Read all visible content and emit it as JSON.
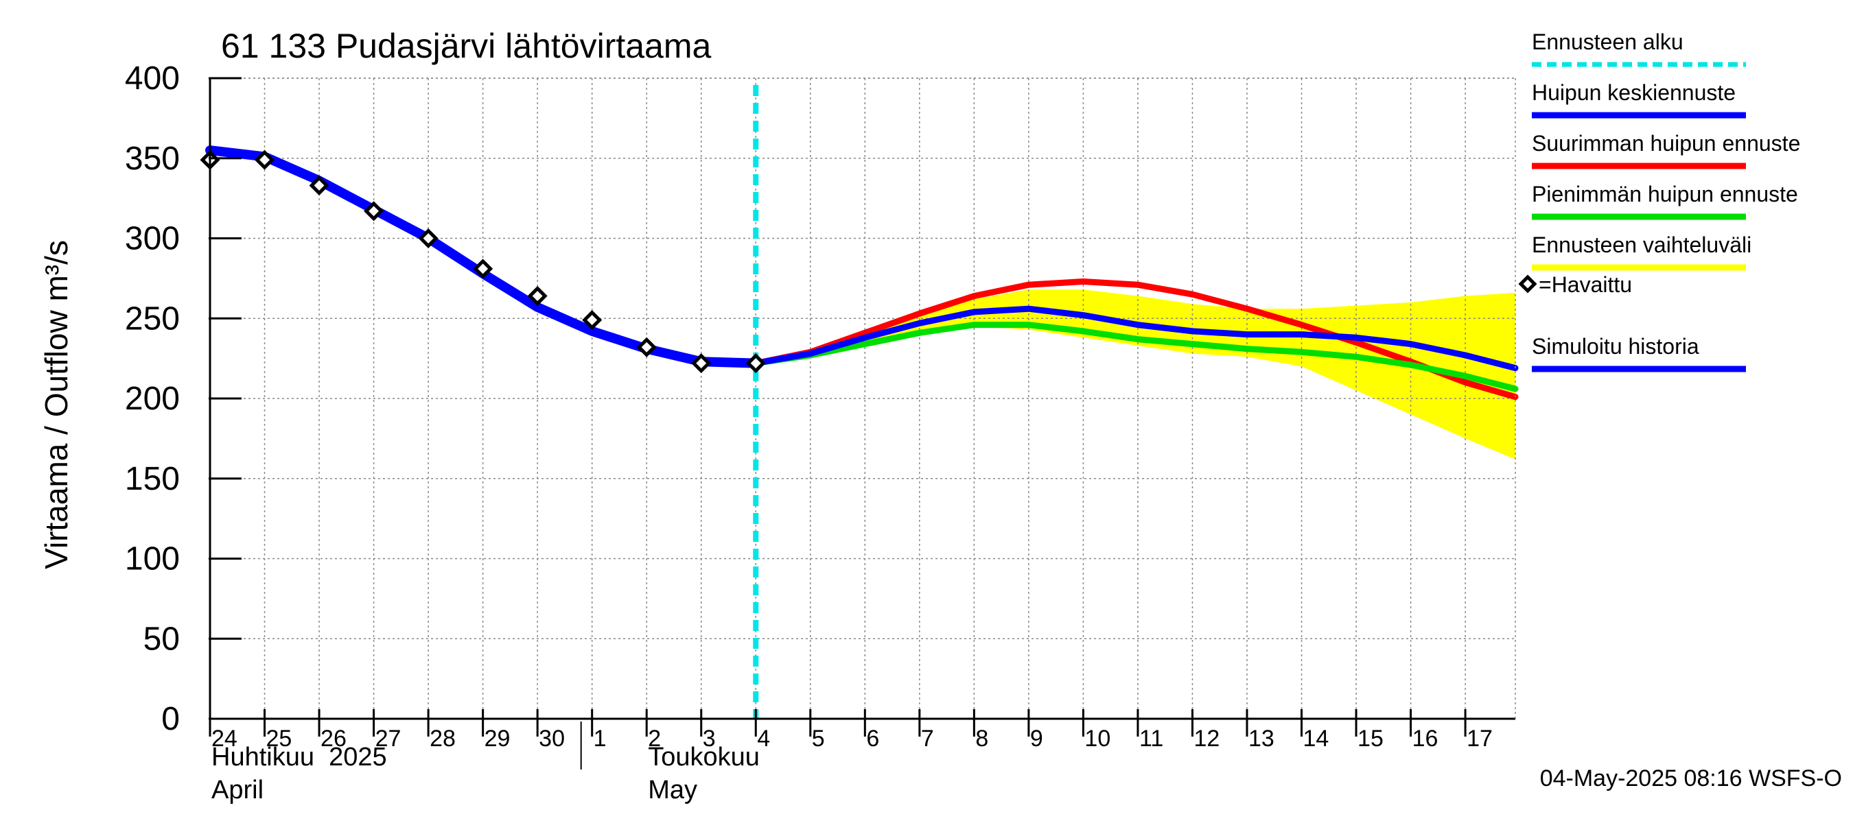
{
  "chart_data": {
    "type": "line",
    "title": "61 133 Pudasjärvi lähtövirtaama",
    "ylabel": "Virtaama / Outflow    m³/s",
    "ylim": [
      0,
      400
    ],
    "yticks": [
      0,
      50,
      100,
      150,
      200,
      250,
      300,
      350,
      400
    ],
    "xlim": [
      "2025-04-24",
      "2025-05-17T22:00"
    ],
    "day_labels": [
      {
        "date": "2025-04-24",
        "label": "24"
      },
      {
        "date": "2025-04-25",
        "label": "25"
      },
      {
        "date": "2025-04-26",
        "label": "26"
      },
      {
        "date": "2025-04-27",
        "label": "27"
      },
      {
        "date": "2025-04-28",
        "label": "28"
      },
      {
        "date": "2025-04-29",
        "label": "29"
      },
      {
        "date": "2025-04-30",
        "label": "30"
      },
      {
        "date": "2025-05-01",
        "label": "1"
      },
      {
        "date": "2025-05-02",
        "label": "2"
      },
      {
        "date": "2025-05-03",
        "label": "3"
      },
      {
        "date": "2025-05-04",
        "label": "4"
      },
      {
        "date": "2025-05-05",
        "label": "5"
      },
      {
        "date": "2025-05-06",
        "label": "6"
      },
      {
        "date": "2025-05-07",
        "label": "7"
      },
      {
        "date": "2025-05-08",
        "label": "8"
      },
      {
        "date": "2025-05-09",
        "label": "9"
      },
      {
        "date": "2025-05-10",
        "label": "10"
      },
      {
        "date": "2025-05-11",
        "label": "11"
      },
      {
        "date": "2025-05-12",
        "label": "12"
      },
      {
        "date": "2025-05-13",
        "label": "13"
      },
      {
        "date": "2025-05-14",
        "label": "14"
      },
      {
        "date": "2025-05-15",
        "label": "15"
      },
      {
        "date": "2025-05-16",
        "label": "16"
      },
      {
        "date": "2025-05-17",
        "label": "17"
      }
    ],
    "month_labels": [
      {
        "date": "2025-04-24",
        "line1": "Huhtikuu  2025",
        "line2": "April"
      },
      {
        "date": "2025-05-02",
        "line1": "Toukokuu",
        "line2": "May"
      }
    ],
    "month_divider_date": "2025-05-01",
    "forecast_start": "2025-05-04",
    "range_band": {
      "x": [
        "2025-05-04",
        "2025-05-05",
        "2025-05-06",
        "2025-05-07",
        "2025-05-08",
        "2025-05-09",
        "2025-05-10",
        "2025-05-11",
        "2025-05-12",
        "2025-05-13",
        "2025-05-14",
        "2025-05-15",
        "2025-05-16",
        "2025-05-17",
        "2025-05-17T22:00"
      ],
      "upper": [
        222,
        228,
        240,
        252,
        262,
        268,
        268,
        264,
        259,
        256,
        256,
        258,
        260,
        264,
        266
      ],
      "lower": [
        222,
        227,
        236,
        242,
        245,
        243,
        238,
        233,
        228,
        226,
        220,
        205,
        190,
        175,
        162
      ]
    },
    "series": [
      {
        "name": "Suurimman huipun ennuste",
        "color": "#ff0000",
        "x": [
          "2025-05-04",
          "2025-05-05",
          "2025-05-06",
          "2025-05-07",
          "2025-05-08",
          "2025-05-09",
          "2025-05-10",
          "2025-05-11",
          "2025-05-12",
          "2025-05-13",
          "2025-05-14",
          "2025-05-15",
          "2025-05-16",
          "2025-05-17",
          "2025-05-17T22:00"
        ],
        "y": [
          222,
          229,
          241,
          253,
          264,
          271,
          273,
          271,
          265,
          256,
          246,
          235,
          223,
          210,
          201
        ]
      },
      {
        "name": "Pienimmän huipun ennuste",
        "color": "#00dd00",
        "x": [
          "2025-05-04",
          "2025-05-05",
          "2025-05-06",
          "2025-05-07",
          "2025-05-08",
          "2025-05-09",
          "2025-05-10",
          "2025-05-11",
          "2025-05-12",
          "2025-05-13",
          "2025-05-14",
          "2025-05-15",
          "2025-05-16",
          "2025-05-17",
          "2025-05-17T22:00"
        ],
        "y": [
          222,
          227,
          234,
          241,
          246,
          246,
          242,
          237,
          234,
          231,
          229,
          226,
          221,
          214,
          206
        ]
      },
      {
        "name": "Huipun keskiennuste",
        "color": "#0000ff",
        "x": [
          "2025-05-04",
          "2025-05-05",
          "2025-05-06",
          "2025-05-07",
          "2025-05-08",
          "2025-05-09",
          "2025-05-10",
          "2025-05-11",
          "2025-05-12",
          "2025-05-13",
          "2025-05-14",
          "2025-05-15",
          "2025-05-16",
          "2025-05-17",
          "2025-05-17T22:00"
        ],
        "y": [
          222,
          228,
          238,
          247,
          254,
          256,
          252,
          246,
          242,
          240,
          240,
          238,
          234,
          227,
          219
        ]
      },
      {
        "name": "Simuloitu historia",
        "color": "#0000ff",
        "x": [
          "2025-04-24",
          "2025-04-25",
          "2025-04-26",
          "2025-04-27",
          "2025-04-28",
          "2025-04-29",
          "2025-04-30",
          "2025-05-01",
          "2025-05-02",
          "2025-05-03",
          "2025-05-04"
        ],
        "y": [
          355,
          351,
          336,
          318,
          300,
          278,
          257,
          242,
          231,
          223,
          222
        ]
      }
    ],
    "observed": {
      "name": "=Havaittu",
      "x": [
        "2025-04-24",
        "2025-04-25",
        "2025-04-26",
        "2025-04-27",
        "2025-04-28",
        "2025-04-29",
        "2025-04-30",
        "2025-05-01",
        "2025-05-02",
        "2025-05-03",
        "2025-05-04"
      ],
      "y": [
        349,
        349,
        333,
        317,
        300,
        281,
        264,
        249,
        232,
        222,
        222
      ]
    },
    "legend": {
      "placement": "right",
      "items": [
        {
          "label": "Ennusteen alku",
          "color": "#00e5e5",
          "style": "dashed"
        },
        {
          "label": "Huipun keskiennuste",
          "color": "#0000ff",
          "style": "line"
        },
        {
          "label": "Suurimman huipun ennuste",
          "color": "#ff0000",
          "style": "line"
        },
        {
          "label": "Pienimmän huipun ennuste",
          "color": "#00dd00",
          "style": "line"
        },
        {
          "label": "Ennusteen vaihteluväli",
          "color": "#ffff00",
          "style": "line"
        },
        {
          "label": "=Havaittu",
          "color": "#000000",
          "style": "marker"
        },
        {
          "label": "Simuloitu historia",
          "color": "#0000ff",
          "style": "line"
        }
      ]
    },
    "grid": true,
    "footer": "04-May-2025 08:16 WSFS-O"
  }
}
